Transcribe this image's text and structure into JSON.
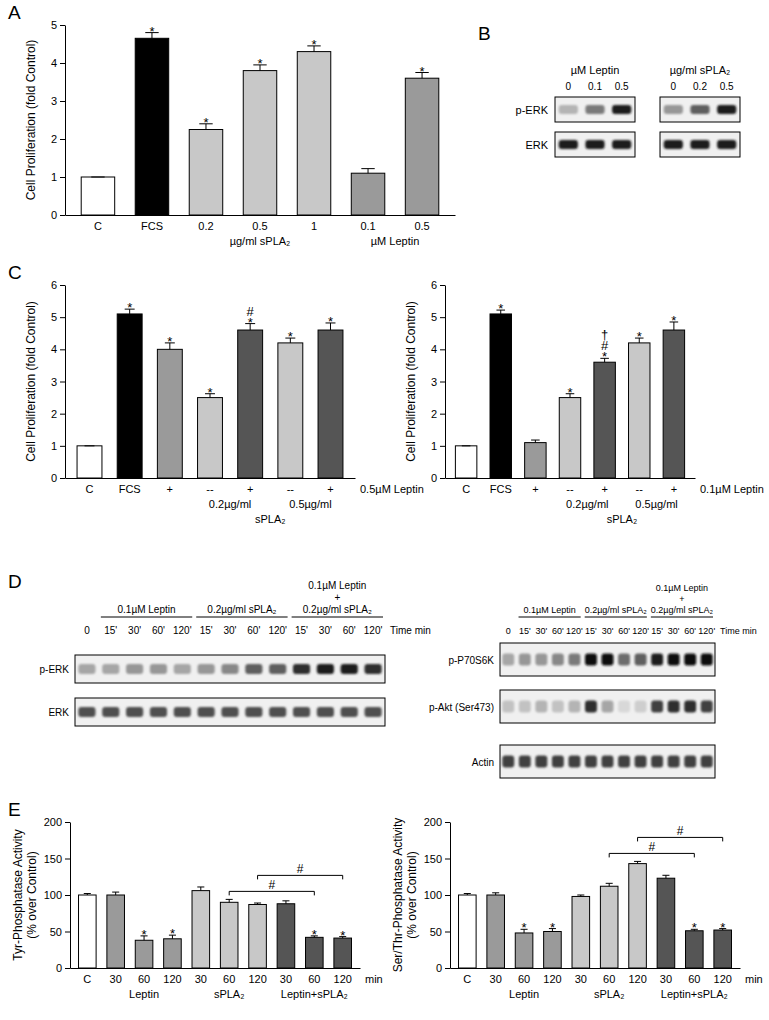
{
  "chart_data": [
    {
      "type": "bar",
      "title": "A",
      "ylabel": "Cell Proliferation (fold Control)",
      "categories": [
        "C",
        "FCS",
        "0.2",
        "0.5",
        "1",
        "0.1",
        "0.5"
      ],
      "values": [
        1,
        4.65,
        2.25,
        3.8,
        4.3,
        1.1,
        3.6
      ],
      "errors": [
        0,
        0.15,
        0.15,
        0.15,
        0.15,
        0.12,
        0.15
      ],
      "colors": [
        "#ffffff",
        "#000000",
        "#c8c8c8",
        "#c8c8c8",
        "#c8c8c8",
        "#9a9a9a",
        "#9a9a9a"
      ],
      "annotations": [
        null,
        [
          "*"
        ],
        [
          "*"
        ],
        [
          "*"
        ],
        [
          "*"
        ],
        null,
        [
          "*"
        ]
      ],
      "groups": [
        [
          {
            "label": "µg/ml sPLA₂",
            "span": [
              2,
              4
            ]
          },
          {
            "label": "µM Leptin",
            "span": [
              5,
              6
            ]
          }
        ]
      ],
      "ylim": [
        0,
        5
      ],
      "yticks": [
        0,
        1,
        2,
        3,
        4,
        5
      ]
    },
    {
      "type": "bar",
      "title": "C",
      "ylabel": "Cell Proliferation (fold Control)",
      "categories": [
        "C",
        "FCS",
        "+",
        "--",
        "+",
        "--",
        "+"
      ],
      "values": [
        1,
        5.1,
        4.0,
        2.5,
        4.6,
        4.2,
        4.6
      ],
      "errors": [
        0,
        0.15,
        0.2,
        0.12,
        0.2,
        0.15,
        0.22
      ],
      "colors": [
        "#ffffff",
        "#000000",
        "#9a9a9a",
        "#c8c8c8",
        "#555555",
        "#c8c8c8",
        "#555555"
      ],
      "annotations": [
        null,
        [
          "*"
        ],
        [
          "*"
        ],
        [
          "*"
        ],
        [
          "#",
          "*"
        ],
        [
          "*"
        ],
        [
          "*"
        ]
      ],
      "xlabel": "0.5µM Leptin",
      "groups": [
        [
          {
            "label": "0.2µg/ml",
            "span": [
              3,
              4
            ]
          },
          {
            "label": "0.5µg/ml",
            "span": [
              5,
              6
            ]
          }
        ],
        [
          {
            "label": "sPLA₂",
            "span": [
              3,
              6
            ]
          }
        ]
      ],
      "ylim": [
        0,
        6
      ],
      "yticks": [
        0,
        1,
        2,
        3,
        4,
        5,
        6
      ]
    },
    {
      "type": "bar",
      "ylabel": "Cell Proliferation (fold Control)",
      "categories": [
        "C",
        "FCS",
        "+",
        "--",
        "+",
        "--",
        "+"
      ],
      "values": [
        1,
        5.1,
        1.1,
        2.5,
        3.6,
        4.2,
        4.6
      ],
      "errors": [
        0,
        0.12,
        0.08,
        0.12,
        0.12,
        0.15,
        0.25
      ],
      "colors": [
        "#ffffff",
        "#000000",
        "#9a9a9a",
        "#c8c8c8",
        "#555555",
        "#c8c8c8",
        "#555555"
      ],
      "annotations": [
        null,
        [
          "*"
        ],
        null,
        [
          "*"
        ],
        [
          "†",
          "#",
          "*"
        ],
        [
          "*"
        ],
        [
          "*"
        ]
      ],
      "xlabel": "0.1µM Leptin",
      "groups": [
        [
          {
            "label": "0.2µg/ml",
            "span": [
              3,
              4
            ]
          },
          {
            "label": "0.5µg/ml",
            "span": [
              5,
              6
            ]
          }
        ],
        [
          {
            "label": "sPLA₂",
            "span": [
              3,
              6
            ]
          }
        ]
      ],
      "ylim": [
        0,
        6
      ],
      "yticks": [
        0,
        1,
        2,
        3,
        4,
        5,
        6
      ]
    },
    {
      "type": "bar",
      "title": "E",
      "ylabel": [
        "Tyr-Phosphatase Activity",
        "(% over Control)"
      ],
      "categories": [
        "C",
        "30",
        "60",
        "120",
        "30",
        "60",
        "120",
        "30",
        "60",
        "120"
      ],
      "values": [
        100,
        100,
        38,
        40,
        106,
        90,
        87,
        88,
        42,
        41
      ],
      "errors": [
        2,
        4,
        6,
        5,
        5,
        4,
        2,
        4,
        2,
        2
      ],
      "colors": [
        "#ffffff",
        "#9a9a9a",
        "#9a9a9a",
        "#9a9a9a",
        "#c8c8c8",
        "#c8c8c8",
        "#c8c8c8",
        "#555555",
        "#555555",
        "#555555"
      ],
      "annotations": [
        null,
        null,
        [
          "*"
        ],
        [
          "*"
        ],
        null,
        null,
        null,
        null,
        [
          "*"
        ],
        [
          "*"
        ]
      ],
      "brackets": [
        {
          "span": [
            5,
            8
          ],
          "label": "#"
        },
        {
          "span": [
            6,
            9
          ],
          "label": "#"
        }
      ],
      "xlabel": "min",
      "groups": [
        [
          {
            "label": "Leptin",
            "span": [
              1,
              3
            ]
          },
          {
            "label": "sPLA₂",
            "span": [
              4,
              6
            ]
          },
          {
            "label": "Leptin+sPLA₂",
            "span": [
              7,
              9
            ]
          }
        ]
      ],
      "ylim": [
        0,
        200
      ],
      "yticks": [
        0,
        50,
        100,
        150,
        200
      ]
    },
    {
      "type": "bar",
      "ylabel": [
        "Ser/Thr-Phosphatase Activity",
        "(% over Control)"
      ],
      "categories": [
        "C",
        "30",
        "60",
        "120",
        "30",
        "60",
        "120",
        "30",
        "60",
        "120"
      ],
      "values": [
        100,
        100,
        48,
        50,
        98,
        112,
        143,
        123,
        51,
        52
      ],
      "errors": [
        2,
        3,
        5,
        4,
        2,
        4,
        3,
        4,
        2,
        2
      ],
      "colors": [
        "#ffffff",
        "#9a9a9a",
        "#9a9a9a",
        "#9a9a9a",
        "#c8c8c8",
        "#c8c8c8",
        "#c8c8c8",
        "#555555",
        "#555555",
        "#555555"
      ],
      "annotations": [
        null,
        null,
        [
          "*"
        ],
        [
          "*"
        ],
        null,
        null,
        null,
        null,
        [
          "*"
        ],
        [
          "*"
        ]
      ],
      "brackets": [
        {
          "span": [
            5,
            8
          ],
          "label": "#"
        },
        {
          "span": [
            6,
            9
          ],
          "label": "#"
        }
      ],
      "xlabel": "min",
      "groups": [
        [
          {
            "label": "Leptin",
            "span": [
              1,
              3
            ]
          },
          {
            "label": "sPLA₂",
            "span": [
              4,
              6
            ]
          },
          {
            "label": "Leptin+sPLA₂",
            "span": [
              7,
              9
            ]
          }
        ]
      ],
      "ylim": [
        0,
        200
      ],
      "yticks": [
        0,
        50,
        100,
        150,
        200
      ]
    }
  ],
  "blots": [
    {
      "panel": "B",
      "rows": [
        "p-ERK",
        "ERK"
      ],
      "sections": [
        {
          "label": "µM Leptin",
          "lanes": [
            "0",
            "0.1",
            "0.5"
          ],
          "intensity": [
            [
              0.4,
              0.6,
              0.9
            ],
            [
              0.9,
              0.9,
              0.9
            ]
          ]
        },
        {
          "label": "µg/ml sPLA₂",
          "lanes": [
            "0",
            "0.2",
            "0.5"
          ],
          "intensity": [
            [
              0.5,
              0.7,
              0.9
            ],
            [
              0.9,
              0.9,
              0.9
            ]
          ]
        }
      ]
    },
    {
      "panel": "D",
      "rows": [
        "p-ERK",
        "ERK"
      ],
      "lanes": [
        "0",
        "15'",
        "30'",
        "60'",
        "120'",
        "15'",
        "30'",
        "60'",
        "120'",
        "15'",
        "30'",
        "60'",
        "120'"
      ],
      "headers": [
        {
          "label": [
            "0.1µM Leptin"
          ],
          "span": [
            1,
            4
          ]
        },
        {
          "label": [
            "0.2µg/ml sPLA₂"
          ],
          "span": [
            5,
            8
          ]
        },
        {
          "label": [
            "0.1µM Leptin",
            "+",
            "0.2µg/ml sPLA₂"
          ],
          "span": [
            9,
            12
          ]
        }
      ],
      "lane_title": "Time min",
      "intensity": [
        [
          0.45,
          0.45,
          0.5,
          0.5,
          0.45,
          0.5,
          0.55,
          0.7,
          0.7,
          0.85,
          0.9,
          0.9,
          0.85
        ],
        [
          0.75,
          0.75,
          0.75,
          0.75,
          0.75,
          0.75,
          0.75,
          0.75,
          0.75,
          0.75,
          0.75,
          0.75,
          0.75
        ]
      ]
    },
    {
      "rows": [
        "p-P70S6K",
        "p-Akt (Ser473)",
        "Actin"
      ],
      "lanes": [
        "0",
        "15'",
        "30'",
        "60'",
        "120'",
        "15'",
        "30'",
        "60'",
        "120'",
        "15'",
        "30'",
        "60'",
        "120'"
      ],
      "headers": [
        {
          "label": [
            "0.1µM Leptin"
          ],
          "span": [
            1,
            4
          ]
        },
        {
          "label": [
            "0.2µg/ml sPLA₂"
          ],
          "span": [
            5,
            8
          ]
        },
        {
          "label": [
            "0.1µM Leptin",
            "+",
            "0.2µg/ml sPLA₂"
          ],
          "span": [
            9,
            12
          ]
        }
      ],
      "lane_title": "Time min",
      "intensity": [
        [
          0.45,
          0.5,
          0.5,
          0.55,
          0.6,
          0.95,
          0.95,
          0.65,
          0.7,
          0.9,
          0.95,
          0.95,
          0.95
        ],
        [
          0.35,
          0.35,
          0.4,
          0.35,
          0.4,
          0.85,
          0.45,
          0.25,
          0.3,
          0.8,
          0.85,
          0.85,
          0.8
        ],
        [
          0.8,
          0.8,
          0.8,
          0.8,
          0.8,
          0.8,
          0.8,
          0.8,
          0.8,
          0.8,
          0.8,
          0.8,
          0.8
        ]
      ]
    }
  ]
}
